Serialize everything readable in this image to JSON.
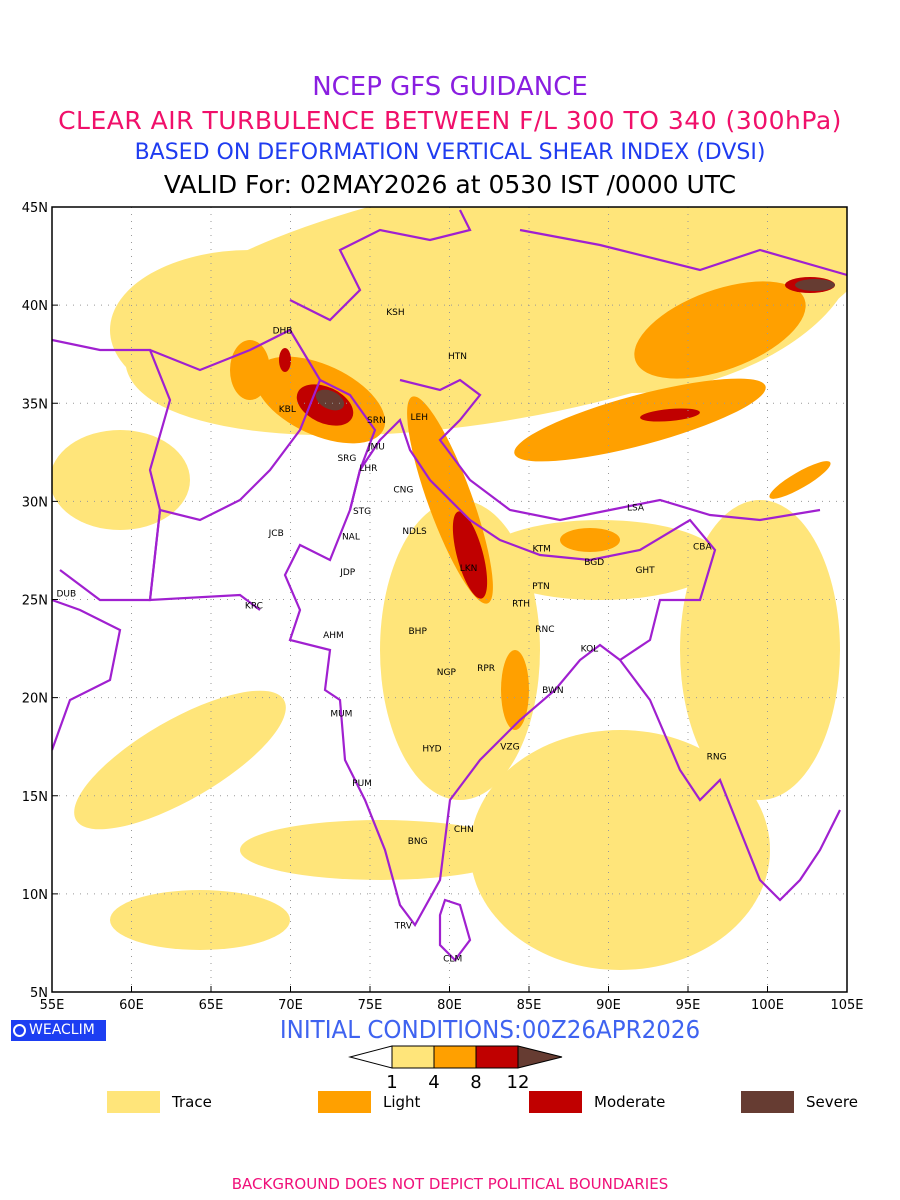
{
  "titles": {
    "line1": "NCEP GFS GUIDANCE",
    "line2": "CLEAR AIR TURBULENCE BETWEEN F/L 300 TO 340 (300hPa)",
    "line3": "BASED ON DEFORMATION VERTICAL SHEAR INDEX (DVSI)",
    "line4": "VALID For: 02MAY2026 at 0530 IST /0000 UTC"
  },
  "map": {
    "lon_range": [
      55,
      105
    ],
    "lat_range": [
      5,
      45
    ],
    "lon_ticks": [
      "55E",
      "60E",
      "65E",
      "70E",
      "75E",
      "80E",
      "85E",
      "90E",
      "95E",
      "100E",
      "105E"
    ],
    "lat_ticks": [
      "45N",
      "40N",
      "35N",
      "30N",
      "25N",
      "20N",
      "15N",
      "10N",
      "5N"
    ],
    "boundary_color": "#a020d0",
    "stations": [
      {
        "name": "DHB",
        "lon": 69.5,
        "lat": 38.7
      },
      {
        "name": "KSH",
        "lon": 76.6,
        "lat": 39.65
      },
      {
        "name": "HTN",
        "lon": 80.5,
        "lat": 37.4
      },
      {
        "name": "KBL",
        "lon": 69.8,
        "lat": 34.7
      },
      {
        "name": "SRN",
        "lon": 75.4,
        "lat": 34.15
      },
      {
        "name": "LEH",
        "lon": 78.1,
        "lat": 34.3
      },
      {
        "name": "JMU",
        "lon": 75.4,
        "lat": 32.8
      },
      {
        "name": "SRG",
        "lon": 73.55,
        "lat": 32.2
      },
      {
        "name": "LHR",
        "lon": 74.9,
        "lat": 31.7
      },
      {
        "name": "CNG",
        "lon": 77.1,
        "lat": 30.6
      },
      {
        "name": "STG",
        "lon": 74.5,
        "lat": 29.5
      },
      {
        "name": "JCB",
        "lon": 69.1,
        "lat": 28.4
      },
      {
        "name": "NAL",
        "lon": 73.8,
        "lat": 28.2
      },
      {
        "name": "NDLS",
        "lon": 77.8,
        "lat": 28.5
      },
      {
        "name": "JDP",
        "lon": 73.6,
        "lat": 26.4
      },
      {
        "name": "LSA",
        "lon": 91.7,
        "lat": 29.7
      },
      {
        "name": "KTM",
        "lon": 85.8,
        "lat": 27.6
      },
      {
        "name": "BGD",
        "lon": 89.1,
        "lat": 26.9
      },
      {
        "name": "GHT",
        "lon": 92.3,
        "lat": 26.5
      },
      {
        "name": "CBA",
        "lon": 95.9,
        "lat": 27.7
      },
      {
        "name": "LKN",
        "lon": 81.2,
        "lat": 26.6
      },
      {
        "name": "PTN",
        "lon": 85.75,
        "lat": 25.7
      },
      {
        "name": "DUB",
        "lon": 55.9,
        "lat": 25.3
      },
      {
        "name": "KRC",
        "lon": 67.7,
        "lat": 24.7
      },
      {
        "name": "RTH",
        "lon": 84.5,
        "lat": 24.8
      },
      {
        "name": "AHM",
        "lon": 72.7,
        "lat": 23.2
      },
      {
        "name": "BHP",
        "lon": 78.0,
        "lat": 23.4
      },
      {
        "name": "RNC",
        "lon": 86.0,
        "lat": 23.5
      },
      {
        "name": "KOL",
        "lon": 88.8,
        "lat": 22.5
      },
      {
        "name": "NGP",
        "lon": 79.8,
        "lat": 21.3
      },
      {
        "name": "RPR",
        "lon": 82.3,
        "lat": 21.5
      },
      {
        "name": "BWN",
        "lon": 86.5,
        "lat": 20.4
      },
      {
        "name": "MUM",
        "lon": 73.2,
        "lat": 19.2
      },
      {
        "name": "HYD",
        "lon": 78.9,
        "lat": 17.4
      },
      {
        "name": "VZG",
        "lon": 83.8,
        "lat": 17.5
      },
      {
        "name": "RNG",
        "lon": 96.8,
        "lat": 17.0
      },
      {
        "name": "PUM",
        "lon": 74.5,
        "lat": 15.65
      },
      {
        "name": "CHN",
        "lon": 80.9,
        "lat": 13.3
      },
      {
        "name": "BNG",
        "lon": 78.0,
        "lat": 12.7
      },
      {
        "name": "TRV",
        "lon": 77.1,
        "lat": 8.4
      },
      {
        "name": "CLM",
        "lon": 80.2,
        "lat": 6.7
      }
    ]
  },
  "logo": "WEACLIM",
  "initial_conditions": "INITIAL CONDITIONS:00Z26APR2026",
  "colorbar": {
    "levels": [
      "1",
      "4",
      "8",
      "12"
    ],
    "colors": [
      "#ffe57a",
      "#ffa000",
      "#c00000",
      "#663c32"
    ]
  },
  "legend": [
    {
      "label": "Trace",
      "color": "#ffe57a"
    },
    {
      "label": "Light",
      "color": "#ffa000"
    },
    {
      "label": "Moderate",
      "color": "#c00000"
    },
    {
      "label": "Severe",
      "color": "#663c32"
    }
  ],
  "footer": "BACKGROUND DOES NOT DEPICT POLITICAL BOUNDARIES"
}
